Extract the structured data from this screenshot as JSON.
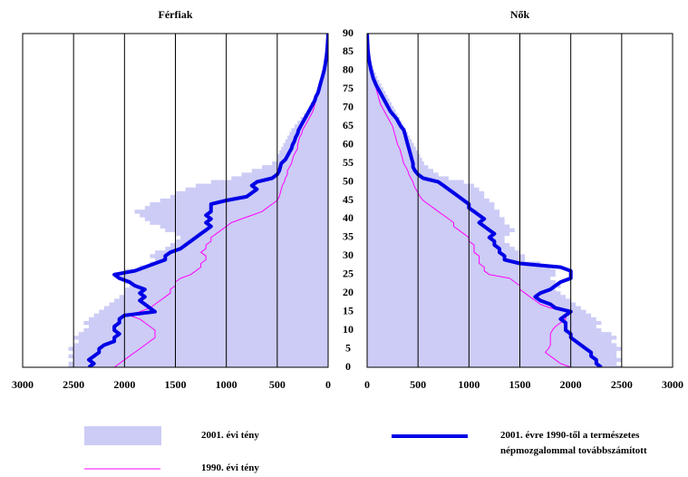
{
  "chart_data": {
    "type": "pyramid",
    "panels": [
      {
        "title": "Férfiak",
        "key": "men",
        "xlim": [
          3000,
          0
        ],
        "xticks": [
          3000,
          2500,
          2000,
          1500,
          1000,
          500,
          0
        ]
      },
      {
        "title": "Nők",
        "key": "women",
        "xlim": [
          0,
          3000
        ],
        "xticks": [
          0,
          500,
          1000,
          1500,
          2000,
          2500,
          3000
        ]
      }
    ],
    "ylim": [
      0,
      90
    ],
    "yticks": [
      0,
      5,
      10,
      15,
      20,
      25,
      30,
      35,
      40,
      45,
      50,
      55,
      60,
      65,
      70,
      75,
      80,
      85,
      90
    ],
    "grid": true,
    "ages": [
      0,
      1,
      2,
      3,
      4,
      5,
      6,
      7,
      8,
      9,
      10,
      11,
      12,
      13,
      14,
      15,
      16,
      17,
      18,
      19,
      20,
      21,
      22,
      23,
      24,
      25,
      26,
      27,
      28,
      29,
      30,
      31,
      32,
      33,
      34,
      35,
      36,
      37,
      38,
      39,
      40,
      41,
      42,
      43,
      44,
      45,
      46,
      47,
      48,
      49,
      50,
      51,
      52,
      53,
      54,
      55,
      56,
      57,
      58,
      59,
      60,
      61,
      62,
      63,
      64,
      65,
      66,
      67,
      68,
      69,
      70,
      71,
      72,
      73,
      74,
      75,
      76,
      77,
      78,
      79,
      80,
      81,
      82,
      83,
      84,
      85,
      86,
      87,
      88,
      89,
      90
    ],
    "series": [
      {
        "name": "2001. évi tény",
        "style": "fill",
        "color": "#ccccf6",
        "men": [
          2550,
          2550,
          2500,
          2550,
          2500,
          2550,
          2500,
          2450,
          2500,
          2450,
          2400,
          2350,
          2400,
          2350,
          2300,
          2250,
          2200,
          2150,
          2100,
          2050,
          2000,
          2000,
          1950,
          2000,
          2050,
          2100,
          2000,
          1850,
          1750,
          1700,
          1750,
          1700,
          1600,
          1550,
          1500,
          1450,
          1500,
          1600,
          1650,
          1750,
          1800,
          1850,
          1900,
          1800,
          1750,
          1650,
          1550,
          1500,
          1400,
          1300,
          1150,
          950,
          850,
          750,
          650,
          550,
          500,
          500,
          480,
          460,
          440,
          420,
          400,
          380,
          360,
          330,
          300,
          270,
          240,
          210,
          190,
          170,
          150,
          130,
          110,
          95,
          80,
          65,
          55,
          45,
          38,
          32,
          26,
          21,
          17,
          13,
          10,
          7,
          5,
          3,
          1
        ],
        "women": [
          2500,
          2450,
          2500,
          2450,
          2450,
          2500,
          2450,
          2400,
          2450,
          2400,
          2300,
          2250,
          2300,
          2250,
          2200,
          2150,
          2100,
          2050,
          2000,
          1950,
          1900,
          1850,
          1900,
          1850,
          1800,
          1850,
          1850,
          1800,
          1700,
          1550,
          1550,
          1500,
          1450,
          1400,
          1350,
          1350,
          1400,
          1450,
          1400,
          1350,
          1350,
          1300,
          1300,
          1250,
          1250,
          1200,
          1150,
          1150,
          1100,
          1050,
          950,
          800,
          700,
          650,
          600,
          560,
          540,
          520,
          500,
          480,
          460,
          440,
          420,
          400,
          380,
          360,
          340,
          320,
          300,
          280,
          260,
          240,
          220,
          200,
          180,
          160,
          140,
          120,
          100,
          85,
          70,
          58,
          46,
          36,
          28,
          21,
          15,
          10,
          6,
          3,
          1
        ]
      },
      {
        "name": "1990. évi tény",
        "style": "line",
        "width": 1,
        "color": "#ff00ff",
        "men": [
          2100,
          2050,
          2000,
          1950,
          1900,
          1850,
          1800,
          1750,
          1700,
          1700,
          1700,
          1750,
          1800,
          1850,
          1950,
          1850,
          1750,
          1700,
          1650,
          1600,
          1550,
          1550,
          1500,
          1500,
          1450,
          1350,
          1300,
          1250,
          1250,
          1200,
          1200,
          1250,
          1200,
          1200,
          1150,
          1150,
          1100,
          1050,
          1000,
          950,
          850,
          750,
          650,
          600,
          550,
          500,
          480,
          470,
          460,
          450,
          430,
          420,
          400,
          400,
          380,
          360,
          350,
          340,
          320,
          300,
          300,
          290,
          280,
          260,
          250,
          230,
          210,
          190,
          170,
          150,
          140,
          130,
          120,
          110,
          100,
          90,
          80,
          70,
          60,
          50,
          40,
          33,
          27,
          22,
          17,
          13,
          10,
          7,
          5,
          3,
          1
        ],
        "women": [
          2000,
          1900,
          1850,
          1800,
          1750,
          1780,
          1800,
          1800,
          1800,
          1800,
          1820,
          1850,
          1900,
          1950,
          1950,
          2000,
          1800,
          1700,
          1650,
          1600,
          1550,
          1500,
          1500,
          1450,
          1400,
          1200,
          1150,
          1150,
          1100,
          1100,
          1100,
          1050,
          1050,
          1050,
          1000,
          1000,
          950,
          900,
          850,
          850,
          800,
          750,
          700,
          650,
          600,
          550,
          520,
          500,
          480,
          460,
          450,
          430,
          410,
          400,
          380,
          360,
          350,
          340,
          330,
          320,
          300,
          290,
          280,
          270,
          260,
          250,
          230,
          210,
          190,
          170,
          150,
          130,
          120,
          110,
          100,
          90,
          80,
          70,
          60,
          50,
          40,
          33,
          26,
          20,
          15,
          11,
          8,
          5,
          3,
          2,
          1
        ]
      },
      {
        "name": "2001. évre 1990-től a természetes népmozgalommal továbbszámított",
        "style": "line",
        "width": 4,
        "color": "#0000e6",
        "men": [
          2350,
          2300,
          2350,
          2300,
          2250,
          2250,
          2200,
          2100,
          2100,
          2050,
          2100,
          2100,
          2050,
          2050,
          2000,
          1700,
          1750,
          1800,
          1850,
          1800,
          1850,
          1800,
          1900,
          1950,
          2050,
          2100,
          1900,
          1800,
          1700,
          1600,
          1600,
          1550,
          1450,
          1400,
          1350,
          1300,
          1250,
          1200,
          1150,
          1200,
          1150,
          1200,
          1150,
          1150,
          1150,
          1000,
          800,
          750,
          700,
          750,
          700,
          550,
          500,
          480,
          470,
          460,
          420,
          400,
          380,
          360,
          350,
          330,
          320,
          300,
          290,
          270,
          250,
          230,
          210,
          190,
          170,
          150,
          130,
          120,
          100,
          90,
          80,
          70,
          60,
          50,
          40,
          33,
          27,
          21,
          16,
          12,
          9,
          6,
          4,
          2,
          1
        ],
        "women": [
          2300,
          2250,
          2250,
          2200,
          2200,
          2150,
          2100,
          2050,
          2000,
          2000,
          1950,
          1950,
          1950,
          1900,
          1950,
          2000,
          1850,
          1800,
          1700,
          1650,
          1700,
          1800,
          1850,
          1900,
          2000,
          2000,
          2000,
          1900,
          1500,
          1350,
          1350,
          1300,
          1300,
          1250,
          1250,
          1200,
          1250,
          1200,
          1150,
          1100,
          1150,
          1100,
          1050,
          1000,
          1000,
          950,
          900,
          850,
          800,
          750,
          700,
          550,
          500,
          470,
          450,
          450,
          440,
          430,
          420,
          410,
          400,
          390,
          380,
          370,
          360,
          330,
          310,
          290,
          260,
          230,
          210,
          190,
          170,
          150,
          130,
          110,
          90,
          75,
          60,
          50,
          40,
          32,
          25,
          19,
          14,
          10,
          7,
          5,
          3,
          2,
          1
        ]
      }
    ]
  }
}
